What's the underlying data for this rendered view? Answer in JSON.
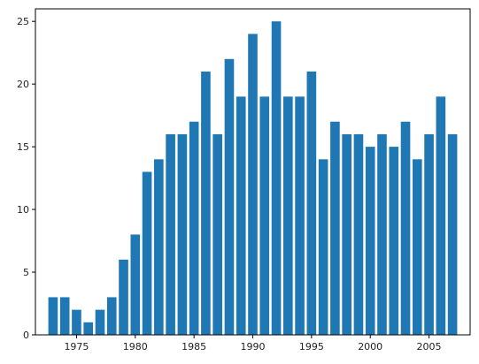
{
  "chart_data": {
    "type": "bar",
    "title": "",
    "xlabel": "",
    "ylabel": "",
    "x": [
      1973,
      1974,
      1975,
      1976,
      1977,
      1978,
      1979,
      1980,
      1981,
      1982,
      1983,
      1984,
      1985,
      1986,
      1987,
      1988,
      1989,
      1990,
      1991,
      1992,
      1993,
      1994,
      1995,
      1996,
      1997,
      1998,
      1999,
      2000,
      2001,
      2002,
      2003,
      2004,
      2005,
      2006,
      2007
    ],
    "values": [
      3,
      3,
      2,
      1,
      2,
      3,
      6,
      8,
      13,
      14,
      16,
      16,
      17,
      21,
      16,
      22,
      19,
      24,
      19,
      25,
      19,
      19,
      21,
      14,
      17,
      16,
      16,
      15,
      16,
      15,
      17,
      14,
      16,
      19,
      16
    ],
    "xlim": [
      1971.5,
      2008.5
    ],
    "ylim": [
      0,
      26
    ],
    "xticks": [
      "1975",
      "1980",
      "1985",
      "1990",
      "1995",
      "2000",
      "2005"
    ],
    "yticks": [
      "0",
      "5",
      "10",
      "15",
      "20",
      "25"
    ],
    "bar_color": "#1f77b4",
    "grid": false,
    "legend": "none"
  }
}
